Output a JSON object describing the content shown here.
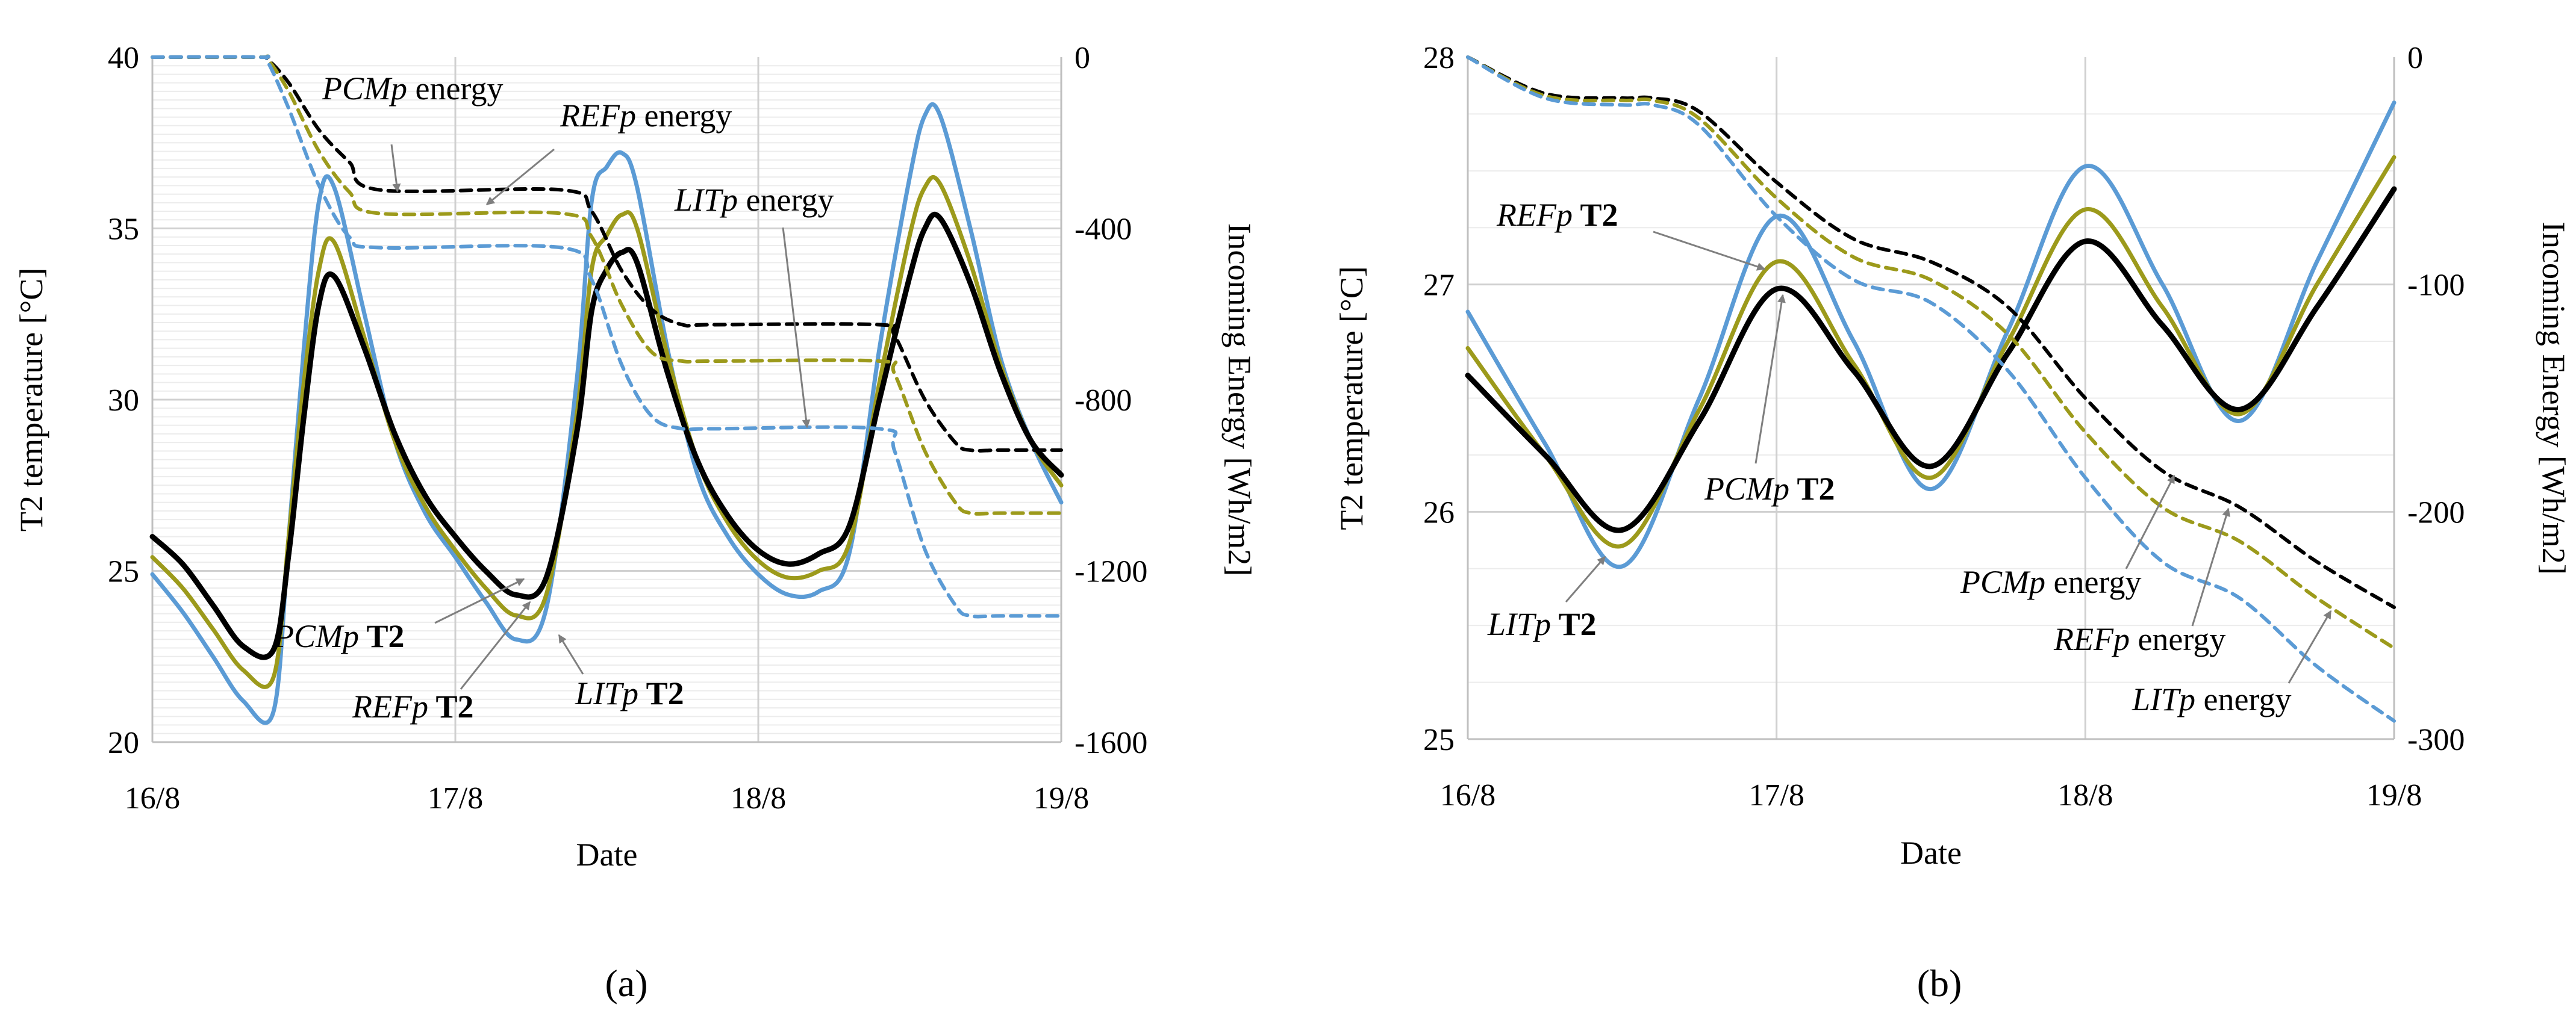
{
  "figure": {
    "panel_labels": [
      "(a)",
      "(b)"
    ]
  },
  "chart_data": [
    {
      "panel": "(a)",
      "type": "line",
      "xlabel": "Date",
      "ylabel": "T2 temperature [°C]",
      "y2label": "Incoming Energy [Wh/m2]",
      "x_ticks": [
        "16/8",
        "17/8",
        "18/8",
        "19/8"
      ],
      "xlim": [
        0,
        3
      ],
      "ylim": [
        20,
        40
      ],
      "y_ticks": [
        20,
        25,
        30,
        35,
        40
      ],
      "y2lim": [
        -1600,
        0
      ],
      "y2_ticks": [
        -1600,
        -1200,
        -800,
        -400,
        0
      ],
      "grid": true,
      "series": [
        {
          "name": "LITp T2",
          "axis": "left",
          "style": "solid",
          "color": "#5b9bd5",
          "x": [
            0,
            0.1,
            0.2,
            0.3,
            0.4,
            0.45,
            0.5,
            0.55,
            0.6,
            0.7,
            0.8,
            0.9,
            1.0,
            1.1,
            1.2,
            1.3,
            1.4,
            1.45,
            1.5,
            1.55,
            1.6,
            1.7,
            1.8,
            1.9,
            2.0,
            2.1,
            2.2,
            2.3,
            2.4,
            2.5,
            2.55,
            2.6,
            2.7,
            2.8,
            2.9,
            3.0
          ],
          "y": [
            24.9,
            23.8,
            22.5,
            21.2,
            20.9,
            26,
            31.5,
            35.8,
            36.2,
            32.5,
            28.8,
            26.7,
            25.4,
            24.1,
            23.0,
            23.9,
            30.5,
            35.8,
            36.8,
            37.2,
            36.2,
            31.5,
            27.8,
            26.0,
            24.9,
            24.3,
            24.4,
            25.5,
            31.5,
            36.5,
            38.3,
            38.3,
            35.0,
            31.2,
            28.8,
            27.0
          ]
        },
        {
          "name": "REFp T2",
          "axis": "left",
          "style": "solid",
          "color": "#9c9a1b",
          "x": [
            0,
            0.1,
            0.2,
            0.3,
            0.4,
            0.45,
            0.5,
            0.55,
            0.6,
            0.7,
            0.8,
            0.9,
            1.0,
            1.1,
            1.2,
            1.3,
            1.4,
            1.45,
            1.5,
            1.55,
            1.6,
            1.7,
            1.8,
            1.9,
            2.0,
            2.1,
            2.2,
            2.3,
            2.4,
            2.5,
            2.55,
            2.6,
            2.7,
            2.8,
            2.9,
            3.0
          ],
          "y": [
            25.4,
            24.5,
            23.3,
            22.1,
            21.9,
            26,
            30.5,
            33.8,
            34.6,
            31.8,
            28.8,
            26.9,
            25.6,
            24.5,
            23.7,
            24.3,
            29.5,
            33.8,
            34.8,
            35.4,
            35.0,
            31.3,
            28.2,
            26.4,
            25.3,
            24.8,
            25.0,
            25.8,
            30.5,
            34.8,
            36.2,
            36.3,
            34.0,
            31.0,
            28.8,
            27.5
          ]
        },
        {
          "name": "PCMp T2",
          "axis": "left",
          "style": "solid",
          "color": "#000000",
          "x": [
            0,
            0.1,
            0.2,
            0.3,
            0.4,
            0.45,
            0.5,
            0.55,
            0.6,
            0.7,
            0.8,
            0.9,
            1.0,
            1.1,
            1.2,
            1.3,
            1.4,
            1.45,
            1.5,
            1.55,
            1.6,
            1.7,
            1.8,
            1.9,
            2.0,
            2.1,
            2.2,
            2.3,
            2.4,
            2.5,
            2.55,
            2.6,
            2.7,
            2.8,
            2.9,
            3.0
          ],
          "y": [
            26.0,
            25.2,
            24.0,
            22.8,
            22.7,
            25.5,
            29.5,
            32.8,
            33.6,
            31.5,
            29.0,
            27.2,
            26.0,
            25.0,
            24.3,
            24.8,
            29.0,
            32.6,
            33.8,
            34.3,
            34.0,
            30.8,
            28.2,
            26.6,
            25.6,
            25.2,
            25.5,
            26.3,
            30.0,
            33.6,
            35.0,
            35.3,
            33.4,
            30.8,
            28.8,
            27.8
          ]
        },
        {
          "name": "PCMp energy",
          "axis": "right",
          "style": "dashed",
          "color": "#000000",
          "x": [
            0,
            0.35,
            0.38,
            0.45,
            0.55,
            0.65,
            0.75,
            1.35,
            1.45,
            1.55,
            1.65,
            1.75,
            1.85,
            2.4,
            2.45,
            2.55,
            2.65,
            2.7,
            2.8,
            3.0
          ],
          "y": [
            0,
            0,
            -5,
            -60,
            -170,
            -245,
            -310,
            -310,
            -360,
            -500,
            -590,
            -625,
            -625,
            -625,
            -650,
            -800,
            -900,
            -918,
            -918,
            -918
          ]
        },
        {
          "name": "REFp energy",
          "axis": "right",
          "style": "dashed",
          "color": "#9c9a1b",
          "x": [
            0,
            0.35,
            0.38,
            0.45,
            0.55,
            0.65,
            0.75,
            1.35,
            1.45,
            1.55,
            1.65,
            1.75,
            1.85,
            2.4,
            2.45,
            2.55,
            2.65,
            2.7,
            2.8,
            3.0
          ],
          "y": [
            0,
            0,
            -5,
            -80,
            -220,
            -315,
            -365,
            -365,
            -420,
            -580,
            -690,
            -710,
            -710,
            -710,
            -740,
            -920,
            -1040,
            -1065,
            -1065,
            -1065
          ]
        },
        {
          "name": "LITp energy",
          "axis": "right",
          "style": "dashed",
          "color": "#5b9bd5",
          "x": [
            0,
            0.35,
            0.38,
            0.45,
            0.55,
            0.65,
            0.75,
            1.35,
            1.45,
            1.55,
            1.65,
            1.75,
            1.85,
            2.4,
            2.45,
            2.55,
            2.65,
            2.7,
            2.8,
            3.0
          ],
          "y": [
            0,
            0,
            -10,
            -120,
            -300,
            -420,
            -445,
            -445,
            -520,
            -720,
            -840,
            -868,
            -868,
            -868,
            -920,
            -1150,
            -1280,
            -1305,
            -1305,
            -1305
          ]
        }
      ],
      "annotations": [
        {
          "name": "PCMp energy",
          "text_italic": "PCMp",
          "text_rest": " energy",
          "bold": false
        },
        {
          "name": "REFp energy",
          "text_italic": "REFp",
          "text_rest": " energy",
          "bold": false
        },
        {
          "name": "LITp energy",
          "text_italic": "LITp",
          "text_rest": " energy",
          "bold": false
        },
        {
          "name": "PCMp T2",
          "text_italic": "PCMp",
          "text_rest": " T2",
          "bold": true
        },
        {
          "name": "REFp T2",
          "text_italic": "REFp",
          "text_rest": " T2",
          "bold": true
        },
        {
          "name": "LITp T2",
          "text_italic": "LITp",
          "text_rest": " T2",
          "bold": true
        }
      ]
    },
    {
      "panel": "(b)",
      "type": "line",
      "xlabel": "Date",
      "ylabel": "T2 temperature [°C]",
      "y2label": "Incoming Energy [Wh/m2]",
      "x_ticks": [
        "16/8",
        "17/8",
        "18/8",
        "19/8"
      ],
      "xlim": [
        0,
        3
      ],
      "ylim": [
        25,
        28
      ],
      "y_ticks": [
        25,
        26,
        27,
        28
      ],
      "y2lim": [
        -300,
        0
      ],
      "y2_ticks": [
        -300,
        -200,
        -100,
        0
      ],
      "grid": true,
      "series": [
        {
          "name": "LITp T2",
          "axis": "left",
          "style": "solid",
          "color": "#5b9bd5",
          "x": [
            0,
            0.25,
            0.5,
            0.75,
            1.0,
            1.25,
            1.5,
            1.75,
            2.0,
            2.25,
            2.5,
            2.75,
            3.0
          ],
          "y": [
            26.88,
            26.3,
            25.76,
            26.5,
            27.3,
            26.75,
            26.1,
            26.8,
            27.52,
            27.0,
            26.4,
            27.1,
            27.8
          ]
        },
        {
          "name": "REFp T2",
          "axis": "left",
          "style": "solid",
          "color": "#9c9a1b",
          "x": [
            0,
            0.25,
            0.5,
            0.75,
            1.0,
            1.25,
            1.5,
            1.75,
            2.0,
            2.25,
            2.5,
            2.75,
            3.0
          ],
          "y": [
            26.72,
            26.25,
            25.85,
            26.45,
            27.1,
            26.65,
            26.15,
            26.75,
            27.33,
            26.9,
            26.43,
            27.0,
            27.56
          ]
        },
        {
          "name": "PCMp T2",
          "axis": "left",
          "style": "solid",
          "color": "#000000",
          "x": [
            0,
            0.25,
            0.5,
            0.75,
            1.0,
            1.25,
            1.5,
            1.75,
            2.0,
            2.25,
            2.5,
            2.75,
            3.0
          ],
          "y": [
            26.6,
            26.25,
            25.92,
            26.4,
            26.98,
            26.62,
            26.2,
            26.7,
            27.19,
            26.82,
            26.45,
            26.9,
            27.42
          ]
        },
        {
          "name": "PCMp energy",
          "axis": "right",
          "style": "dashed",
          "color": "#000000",
          "x": [
            0,
            0.25,
            0.5,
            0.6,
            0.75,
            1.0,
            1.25,
            1.5,
            1.75,
            2.0,
            2.25,
            2.5,
            2.75,
            3.0
          ],
          "y": [
            0,
            -16,
            -18,
            -18,
            -24,
            -55,
            -80,
            -90,
            -110,
            -150,
            -182,
            -198,
            -222,
            -242
          ]
        },
        {
          "name": "REFp energy",
          "axis": "right",
          "style": "dashed",
          "color": "#9c9a1b",
          "x": [
            0,
            0.25,
            0.5,
            0.6,
            0.75,
            1.0,
            1.25,
            1.5,
            1.75,
            2.0,
            2.25,
            2.5,
            2.75,
            3.0
          ],
          "y": [
            0,
            -17,
            -19,
            -19,
            -27,
            -62,
            -88,
            -98,
            -122,
            -165,
            -198,
            -213,
            -238,
            -260
          ]
        },
        {
          "name": "LITp energy",
          "axis": "right",
          "style": "dashed",
          "color": "#5b9bd5",
          "x": [
            0,
            0.25,
            0.5,
            0.6,
            0.75,
            1.0,
            1.25,
            1.5,
            1.75,
            2.0,
            2.25,
            2.5,
            2.75,
            3.0
          ],
          "y": [
            0,
            -18,
            -21,
            -21,
            -30,
            -70,
            -98,
            -108,
            -138,
            -185,
            -222,
            -238,
            -268,
            -292
          ]
        }
      ],
      "annotations": [
        {
          "name": "REFp T2",
          "text_italic": "REFp",
          "text_rest": " T2",
          "bold": true
        },
        {
          "name": "PCMp T2",
          "text_italic": "PCMp",
          "text_rest": " T2",
          "bold": true
        },
        {
          "name": "LITp T2",
          "text_italic": "LITp",
          "text_rest": " T2",
          "bold": true
        },
        {
          "name": "PCMp energy",
          "text_italic": "PCMp",
          "text_rest": " energy",
          "bold": false
        },
        {
          "name": "REFp energy",
          "text_italic": "REFp",
          "text_rest": " energy",
          "bold": false
        },
        {
          "name": "LITp energy",
          "text_italic": "LITp",
          "text_rest": " energy",
          "bold": false
        }
      ]
    }
  ]
}
